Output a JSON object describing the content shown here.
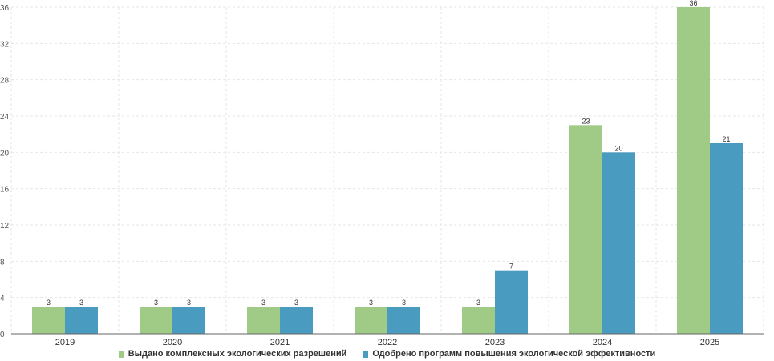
{
  "chart_data": {
    "type": "bar",
    "categories": [
      "2019",
      "2020",
      "2021",
      "2022",
      "2023",
      "2024",
      "2025"
    ],
    "series": [
      {
        "name": "Выдано комплексных экологических разрешений",
        "values": [
          3,
          3,
          3,
          3,
          3,
          23,
          36
        ],
        "color": "#9fcb86"
      },
      {
        "name": "Одобрено программ повышения экологической эффективности",
        "values": [
          3,
          3,
          3,
          3,
          7,
          20,
          21
        ],
        "color": "#4a9bc0"
      }
    ],
    "yticks": [
      "0",
      "4",
      "8",
      "12",
      "16",
      "20",
      "24",
      "28",
      "32",
      "36"
    ],
    "ylim": [
      0,
      36
    ],
    "grid": true,
    "legend_position": "bottom",
    "data_labels": true
  }
}
